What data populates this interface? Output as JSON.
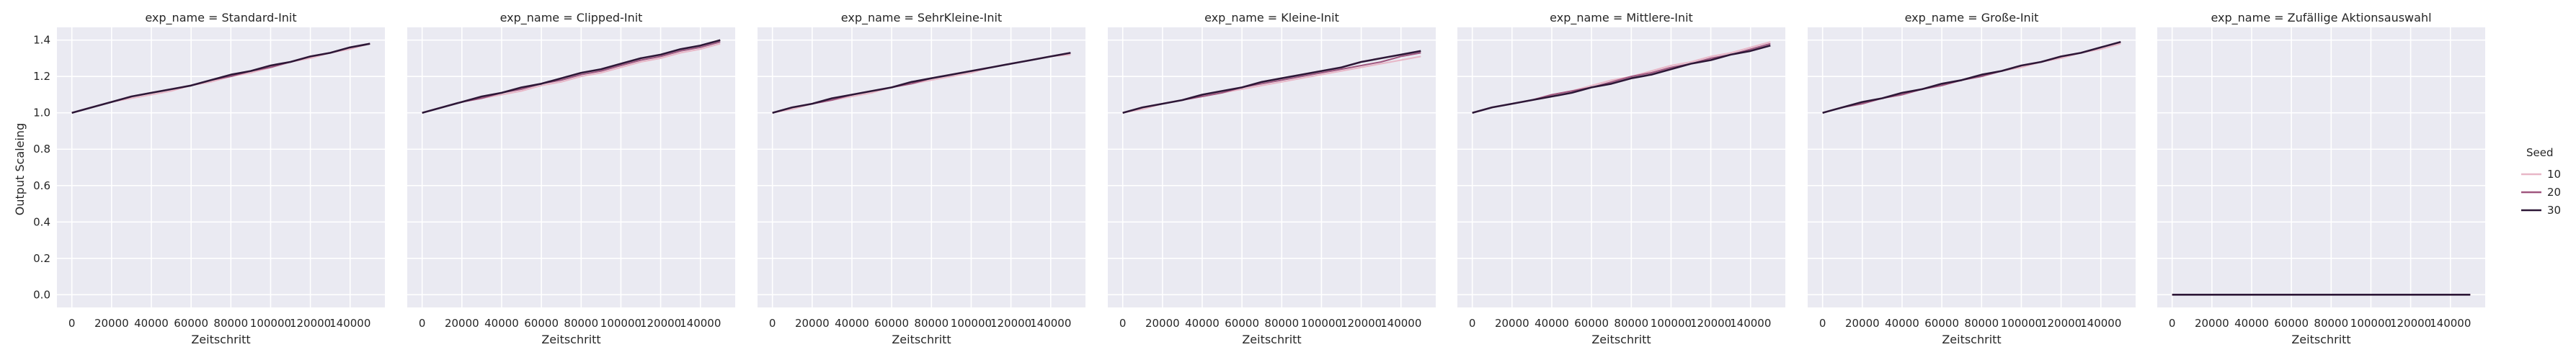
{
  "chart_data": {
    "type": "line",
    "facet_var": "exp_name",
    "xlabel": "Zeitschritt",
    "ylabel": "Output Scaleing",
    "xlim": [
      -7500,
      157500
    ],
    "ylim": [
      -0.07,
      1.47
    ],
    "xticks": [
      0,
      20000,
      40000,
      60000,
      80000,
      100000,
      120000,
      140000
    ],
    "yticks": [
      0.0,
      0.2,
      0.4,
      0.6,
      0.8,
      1.0,
      1.2,
      1.4
    ],
    "ytick_labels": [
      "0.0",
      "0.2",
      "0.4",
      "0.6",
      "0.8",
      "1.0",
      "1.2",
      "1.4"
    ],
    "grid": true,
    "legend": {
      "title": "Seed",
      "placement": "right",
      "entries": [
        {
          "name": "10",
          "color": "#e8b7c7"
        },
        {
          "name": "20",
          "color": "#a0577f"
        },
        {
          "name": "30",
          "color": "#2d1737"
        }
      ]
    },
    "x": [
      0,
      10000,
      20000,
      30000,
      40000,
      50000,
      60000,
      70000,
      80000,
      90000,
      100000,
      110000,
      120000,
      130000,
      140000,
      150000
    ],
    "panels": [
      {
        "title": "exp_name = Standard-Init",
        "series": [
          {
            "name": "10",
            "values": [
              1.0,
              1.03,
              1.06,
              1.08,
              1.1,
              1.12,
              1.15,
              1.17,
              1.2,
              1.22,
              1.25,
              1.28,
              1.3,
              1.33,
              1.35,
              1.38
            ]
          },
          {
            "name": "20",
            "values": [
              1.0,
              1.03,
              1.06,
              1.09,
              1.11,
              1.13,
              1.15,
              1.18,
              1.2,
              1.23,
              1.25,
              1.28,
              1.31,
              1.33,
              1.36,
              1.38
            ]
          },
          {
            "name": "30",
            "values": [
              1.0,
              1.03,
              1.06,
              1.09,
              1.11,
              1.13,
              1.15,
              1.18,
              1.21,
              1.23,
              1.26,
              1.28,
              1.31,
              1.33,
              1.36,
              1.38
            ]
          }
        ]
      },
      {
        "title": "exp_name = Clipped-Init",
        "series": [
          {
            "name": "10",
            "values": [
              1.0,
              1.03,
              1.06,
              1.08,
              1.1,
              1.12,
              1.15,
              1.17,
              1.2,
              1.22,
              1.25,
              1.28,
              1.3,
              1.33,
              1.35,
              1.38
            ]
          },
          {
            "name": "20",
            "values": [
              1.0,
              1.03,
              1.06,
              1.08,
              1.11,
              1.13,
              1.16,
              1.18,
              1.21,
              1.23,
              1.26,
              1.29,
              1.31,
              1.34,
              1.36,
              1.39
            ]
          },
          {
            "name": "30",
            "values": [
              1.0,
              1.03,
              1.06,
              1.09,
              1.11,
              1.14,
              1.16,
              1.19,
              1.22,
              1.24,
              1.27,
              1.3,
              1.32,
              1.35,
              1.37,
              1.4
            ]
          }
        ]
      },
      {
        "title": "exp_name = SehrKleine-Init",
        "series": [
          {
            "name": "10",
            "values": [
              1.0,
              1.02,
              1.05,
              1.07,
              1.09,
              1.11,
              1.14,
              1.16,
              1.18,
              1.2,
              1.22,
              1.25,
              1.27,
              1.29,
              1.31,
              1.32
            ]
          },
          {
            "name": "20",
            "values": [
              1.0,
              1.03,
              1.05,
              1.07,
              1.1,
              1.12,
              1.14,
              1.16,
              1.19,
              1.21,
              1.23,
              1.25,
              1.27,
              1.29,
              1.31,
              1.33
            ]
          },
          {
            "name": "30",
            "values": [
              1.0,
              1.03,
              1.05,
              1.08,
              1.1,
              1.12,
              1.14,
              1.17,
              1.19,
              1.21,
              1.23,
              1.25,
              1.27,
              1.29,
              1.31,
              1.33
            ]
          }
        ]
      },
      {
        "title": "exp_name = Kleine-Init",
        "series": [
          {
            "name": "10",
            "values": [
              1.0,
              1.02,
              1.05,
              1.07,
              1.09,
              1.11,
              1.13,
              1.15,
              1.17,
              1.19,
              1.21,
              1.23,
              1.25,
              1.27,
              1.29,
              1.31
            ]
          },
          {
            "name": "20",
            "values": [
              1.0,
              1.03,
              1.05,
              1.07,
              1.09,
              1.11,
              1.14,
              1.16,
              1.18,
              1.2,
              1.22,
              1.24,
              1.26,
              1.28,
              1.31,
              1.33
            ]
          },
          {
            "name": "30",
            "values": [
              1.0,
              1.03,
              1.05,
              1.07,
              1.1,
              1.12,
              1.14,
              1.17,
              1.19,
              1.21,
              1.23,
              1.25,
              1.28,
              1.3,
              1.32,
              1.34
            ]
          }
        ]
      },
      {
        "title": "exp_name = Mittlere-Init",
        "series": [
          {
            "name": "10",
            "values": [
              1.0,
              1.03,
              1.05,
              1.07,
              1.1,
              1.12,
              1.15,
              1.18,
              1.2,
              1.23,
              1.26,
              1.28,
              1.31,
              1.33,
              1.36,
              1.39
            ]
          },
          {
            "name": "20",
            "values": [
              1.0,
              1.03,
              1.05,
              1.07,
              1.1,
              1.12,
              1.14,
              1.17,
              1.2,
              1.22,
              1.25,
              1.27,
              1.3,
              1.32,
              1.35,
              1.38
            ]
          },
          {
            "name": "30",
            "values": [
              1.0,
              1.03,
              1.05,
              1.07,
              1.09,
              1.11,
              1.14,
              1.16,
              1.19,
              1.21,
              1.24,
              1.27,
              1.29,
              1.32,
              1.34,
              1.37
            ]
          }
        ]
      },
      {
        "title": "exp_name = Große-Init",
        "series": [
          {
            "name": "10",
            "values": [
              1.0,
              1.03,
              1.05,
              1.08,
              1.1,
              1.13,
              1.15,
              1.18,
              1.2,
              1.23,
              1.25,
              1.28,
              1.3,
              1.33,
              1.35,
              1.38
            ]
          },
          {
            "name": "20",
            "values": [
              1.0,
              1.03,
              1.05,
              1.08,
              1.1,
              1.13,
              1.15,
              1.18,
              1.2,
              1.23,
              1.26,
              1.28,
              1.31,
              1.33,
              1.36,
              1.39
            ]
          },
          {
            "name": "30",
            "values": [
              1.0,
              1.03,
              1.06,
              1.08,
              1.11,
              1.13,
              1.16,
              1.18,
              1.21,
              1.23,
              1.26,
              1.28,
              1.31,
              1.33,
              1.36,
              1.39
            ]
          }
        ]
      },
      {
        "title": "exp_name = Zufällige Aktionsauswahl",
        "series": [
          {
            "name": "10",
            "values": [
              0.0,
              0.0,
              0.0,
              0.0,
              0.0,
              0.0,
              0.0,
              0.0,
              0.0,
              0.0,
              0.0,
              0.0,
              0.0,
              0.0,
              0.0,
              0.0
            ]
          },
          {
            "name": "20",
            "values": [
              0.0,
              0.0,
              0.0,
              0.0,
              0.0,
              0.0,
              0.0,
              0.0,
              0.0,
              0.0,
              0.0,
              0.0,
              0.0,
              0.0,
              0.0,
              0.0
            ]
          },
          {
            "name": "30",
            "values": [
              0.0,
              0.0,
              0.0,
              0.0,
              0.0,
              0.0,
              0.0,
              0.0,
              0.0,
              0.0,
              0.0,
              0.0,
              0.0,
              0.0,
              0.0,
              0.0
            ]
          }
        ]
      }
    ]
  }
}
